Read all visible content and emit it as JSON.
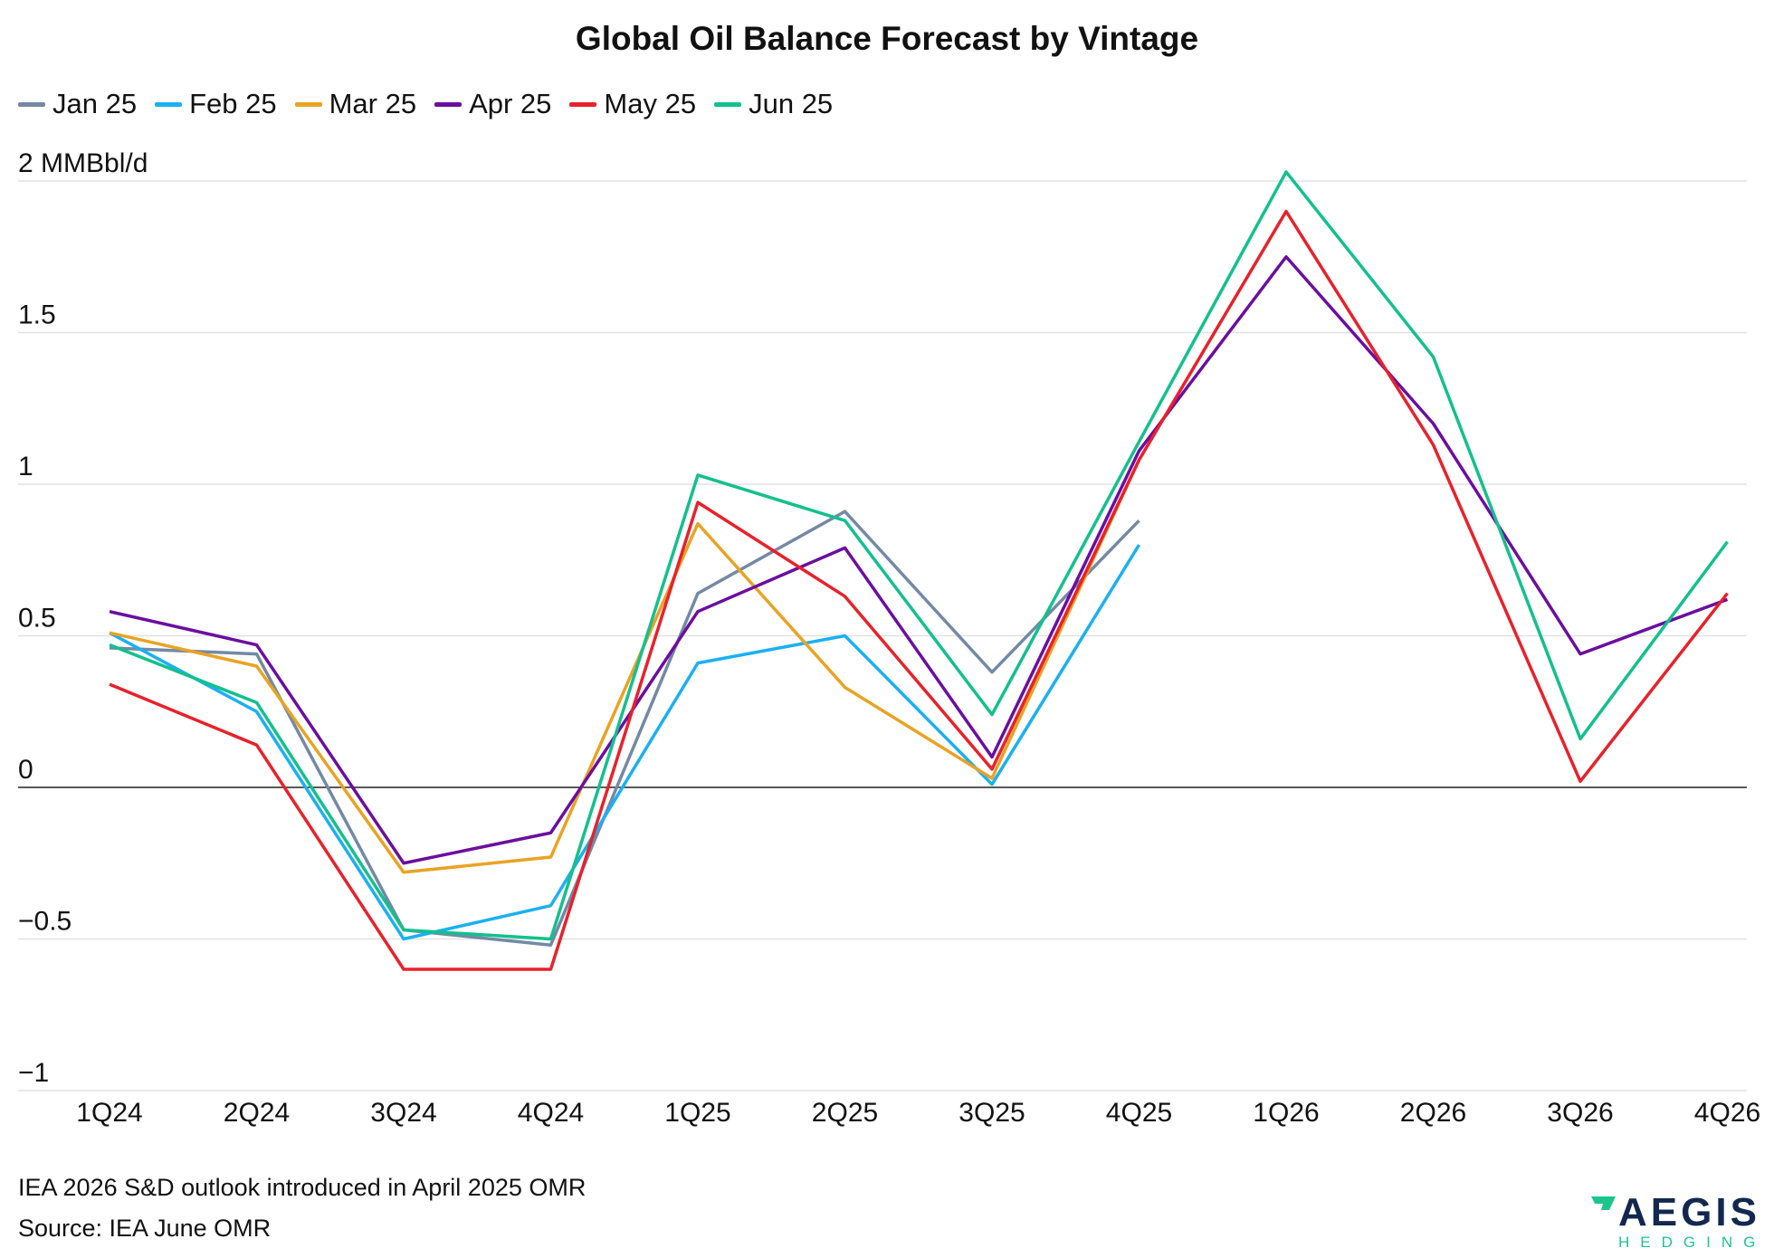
{
  "chart_data": {
    "type": "line",
    "title": "Global Oil Balance Forecast by Vintage",
    "ylabel": "MMBbl/d",
    "ylim": [
      -1,
      2
    ],
    "yticks": [
      {
        "value": 2,
        "label": "2 MMBbl/d"
      },
      {
        "value": 1.5,
        "label": "1.5"
      },
      {
        "value": 1,
        "label": "1"
      },
      {
        "value": 0.5,
        "label": "0.5"
      },
      {
        "value": 0,
        "label": "0"
      },
      {
        "value": -0.5,
        "label": "−0.5"
      },
      {
        "value": -1,
        "label": "−1"
      }
    ],
    "grid": true,
    "legend": "top-left",
    "categories": [
      "1Q24",
      "2Q24",
      "3Q24",
      "4Q24",
      "1Q25",
      "2Q25",
      "3Q25",
      "4Q25",
      "1Q26",
      "2Q26",
      "3Q26",
      "4Q26"
    ],
    "series": [
      {
        "name": "Jan 25",
        "color": "#7389a5",
        "values": [
          0.46,
          0.44,
          -0.47,
          -0.52,
          0.64,
          0.91,
          0.38,
          0.88,
          null,
          null,
          null,
          null
        ]
      },
      {
        "name": "Feb 25",
        "color": "#1ab0f2",
        "values": [
          0.51,
          0.25,
          -0.5,
          -0.39,
          0.41,
          0.5,
          0.01,
          0.8,
          null,
          null,
          null,
          null
        ]
      },
      {
        "name": "Mar 25",
        "color": "#e9a323",
        "values": [
          0.51,
          0.4,
          -0.28,
          -0.23,
          0.87,
          0.33,
          0.03,
          1.08,
          null,
          null,
          null,
          null
        ]
      },
      {
        "name": "Apr 25",
        "color": "#6b0ea0",
        "values": [
          0.58,
          0.47,
          -0.25,
          -0.15,
          0.58,
          0.79,
          0.1,
          1.11,
          1.75,
          1.2,
          0.44,
          0.62
        ]
      },
      {
        "name": "May 25",
        "color": "#e8212b",
        "values": [
          0.34,
          0.14,
          -0.6,
          -0.6,
          0.94,
          0.63,
          0.06,
          1.08,
          1.9,
          1.13,
          0.02,
          0.64
        ]
      },
      {
        "name": "Jun 25",
        "color": "#13c08d",
        "values": [
          0.47,
          0.28,
          -0.47,
          -0.5,
          1.03,
          0.88,
          0.24,
          1.14,
          2.03,
          1.42,
          0.16,
          0.81
        ]
      }
    ]
  },
  "footnotes": [
    "IEA 2026 S&D outlook introduced in April 2025 OMR",
    "Source: IEA June OMR"
  ],
  "logo": {
    "name": "AEGIS",
    "sub": "HEDGING"
  }
}
